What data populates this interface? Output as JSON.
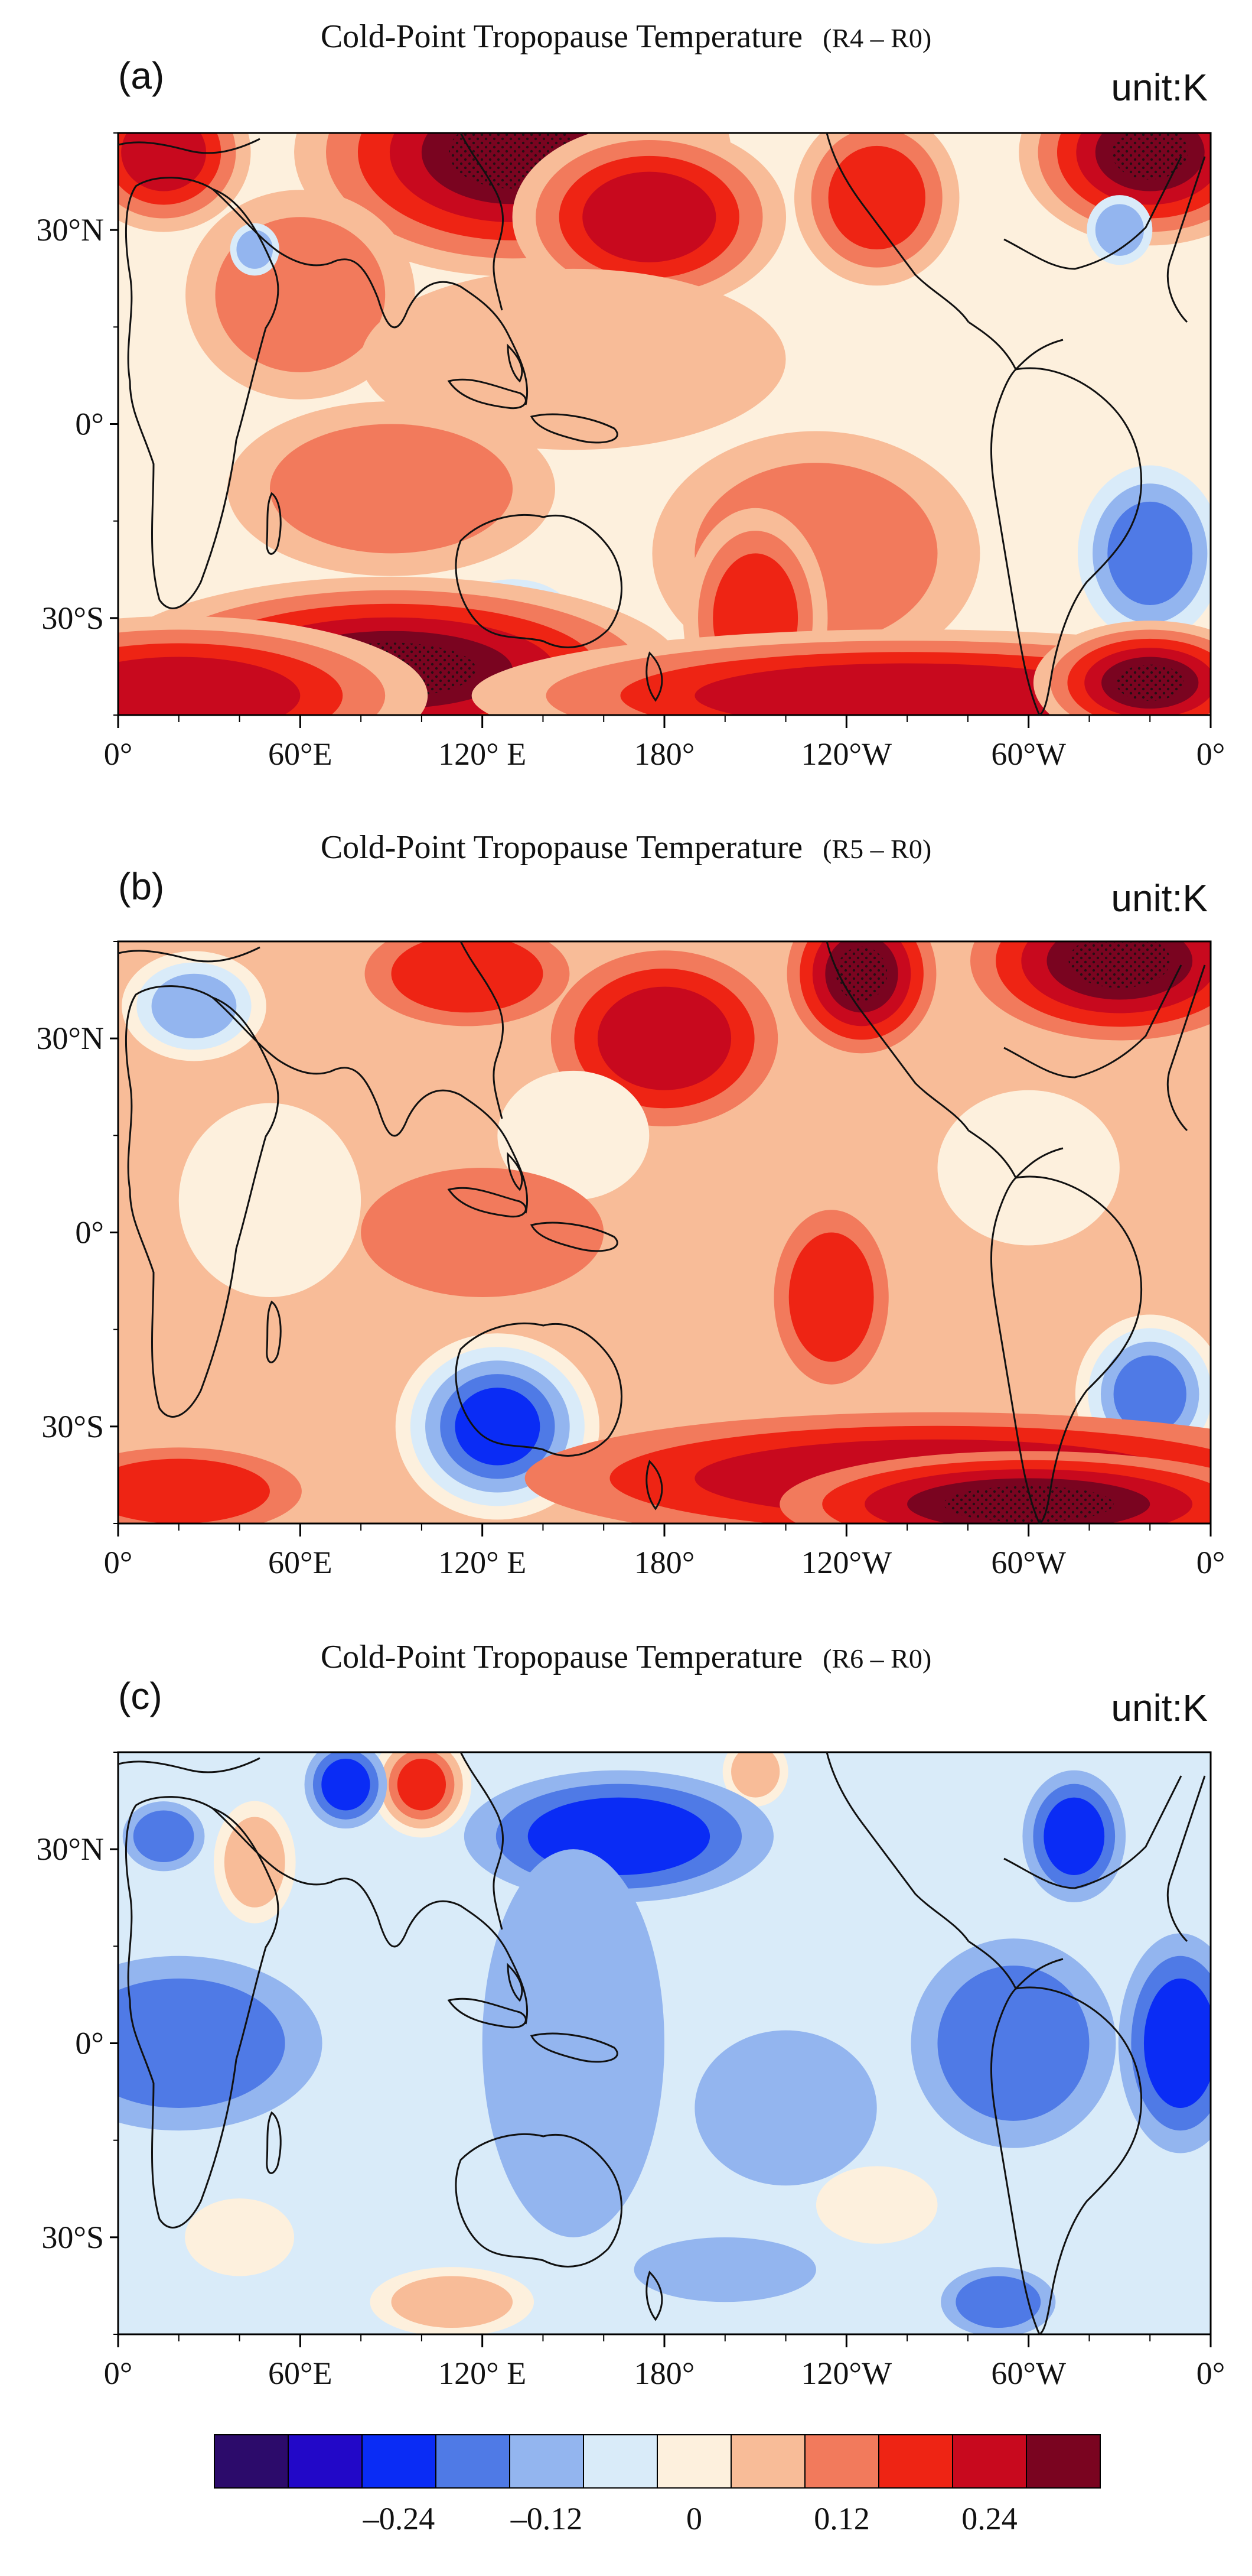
{
  "palette": [
    "#2c0b6b",
    "#2208c8",
    "#0a2cf5",
    "#4f7ae6",
    "#93b5ef",
    "#d9ebf9",
    "#fdf0dd",
    "#f8bc98",
    "#f27a5c",
    "#ee2414",
    "#c8091e",
    "#7a0420"
  ],
  "colorbar": {
    "labels": [
      "–0.24",
      "–0.12",
      "0",
      "0.12",
      "0.24"
    ]
  },
  "axes": {
    "x_labels": [
      "0°",
      "60°E",
      "120° E",
      "180°",
      "120°W",
      "60°W",
      "0°"
    ],
    "y_labels": [
      "30°N",
      "0°",
      "30°S"
    ]
  },
  "panels": [
    {
      "label": "(a)",
      "title": "Cold-Point Tropopause Temperature",
      "experiment": "(R4 – R0)",
      "unit": "unit:K",
      "base": 6,
      "field": [
        {
          "lon": 130,
          "lat": 42,
          "rx": 30,
          "ry": 8,
          "level": 11
        },
        {
          "lon": 15,
          "lat": 42,
          "rx": 14,
          "ry": 6,
          "level": 10
        },
        {
          "lon": 340,
          "lat": 42,
          "rx": 18,
          "ry": 6,
          "level": 11
        },
        {
          "lon": 175,
          "lat": 32,
          "rx": 22,
          "ry": 7,
          "level": 10
        },
        {
          "lon": 250,
          "lat": 35,
          "rx": 16,
          "ry": 8,
          "level": 9
        },
        {
          "lon": 60,
          "lat": 20,
          "rx": 28,
          "ry": 12,
          "level": 8
        },
        {
          "lon": 150,
          "lat": 10,
          "rx": 70,
          "ry": 14,
          "level": 7
        },
        {
          "lon": 90,
          "lat": -10,
          "rx": 40,
          "ry": 10,
          "level": 8
        },
        {
          "lon": 230,
          "lat": -20,
          "rx": 40,
          "ry": 14,
          "level": 8
        },
        {
          "lon": 210,
          "lat": -30,
          "rx": 14,
          "ry": 10,
          "level": 9
        },
        {
          "lon": 340,
          "lat": -20,
          "rx": 14,
          "ry": 8,
          "level": 3
        },
        {
          "lon": 330,
          "lat": 30,
          "rx": 8,
          "ry": 4,
          "level": 4
        },
        {
          "lon": 45,
          "lat": 27,
          "rx": 6,
          "ry": 3,
          "level": 4
        },
        {
          "lon": 130,
          "lat": -30,
          "rx": 20,
          "ry": 6,
          "level": 5
        },
        {
          "lon": 90,
          "lat": -38,
          "rx": 40,
          "ry": 6,
          "level": 11
        },
        {
          "lon": 20,
          "lat": -42,
          "rx": 40,
          "ry": 6,
          "level": 10
        },
        {
          "lon": 260,
          "lat": -42,
          "rx": 70,
          "ry": 5,
          "level": 10
        },
        {
          "lon": 340,
          "lat": -40,
          "rx": 16,
          "ry": 4,
          "level": 11
        }
      ]
    },
    {
      "label": "(b)",
      "title": "Cold-Point Tropopause Temperature",
      "experiment": "(R5 – R0)",
      "unit": "unit:K",
      "base": 7,
      "field": [
        {
          "lon": 115,
          "lat": 40,
          "rx": 25,
          "ry": 6,
          "level": 9
        },
        {
          "lon": 180,
          "lat": 30,
          "rx": 22,
          "ry": 8,
          "level": 10
        },
        {
          "lon": 245,
          "lat": 40,
          "rx": 12,
          "ry": 6,
          "level": 11
        },
        {
          "lon": 330,
          "lat": 42,
          "rx": 24,
          "ry": 6,
          "level": 11
        },
        {
          "lon": 25,
          "lat": 35,
          "rx": 14,
          "ry": 5,
          "level": 4
        },
        {
          "lon": 50,
          "lat": 5,
          "rx": 30,
          "ry": 15,
          "level": 6
        },
        {
          "lon": 150,
          "lat": 15,
          "rx": 25,
          "ry": 10,
          "level": 6
        },
        {
          "lon": 300,
          "lat": 10,
          "rx": 30,
          "ry": 12,
          "level": 6
        },
        {
          "lon": 120,
          "lat": 0,
          "rx": 40,
          "ry": 10,
          "level": 8
        },
        {
          "lon": 235,
          "lat": -10,
          "rx": 14,
          "ry": 10,
          "level": 9
        },
        {
          "lon": 125,
          "lat": -30,
          "rx": 14,
          "ry": 6,
          "level": 2
        },
        {
          "lon": 340,
          "lat": -25,
          "rx": 12,
          "ry": 6,
          "level": 3
        },
        {
          "lon": 270,
          "lat": -38,
          "rx": 80,
          "ry": 6,
          "level": 10
        },
        {
          "lon": 300,
          "lat": -42,
          "rx": 40,
          "ry": 4,
          "level": 11
        },
        {
          "lon": 20,
          "lat": -40,
          "rx": 30,
          "ry": 5,
          "level": 9
        }
      ]
    },
    {
      "label": "(c)",
      "title": "Cold-Point Tropopause Temperature",
      "experiment": "(R6 – R0)",
      "unit": "unit:K",
      "base": 5,
      "field": [
        {
          "lon": 100,
          "lat": 40,
          "rx": 8,
          "ry": 4,
          "level": 9
        },
        {
          "lon": 210,
          "lat": 42,
          "rx": 8,
          "ry": 4,
          "level": 7
        },
        {
          "lon": 45,
          "lat": 28,
          "rx": 10,
          "ry": 7,
          "level": 7
        },
        {
          "lon": 165,
          "lat": 32,
          "rx": 30,
          "ry": 6,
          "level": 2
        },
        {
          "lon": 315,
          "lat": 32,
          "rx": 10,
          "ry": 6,
          "level": 2
        },
        {
          "lon": 75,
          "lat": 40,
          "rx": 8,
          "ry": 4,
          "level": 2
        },
        {
          "lon": 15,
          "lat": 32,
          "rx": 10,
          "ry": 4,
          "level": 3
        },
        {
          "lon": 20,
          "lat": 0,
          "rx": 35,
          "ry": 10,
          "level": 3
        },
        {
          "lon": 150,
          "lat": 0,
          "rx": 30,
          "ry": 30,
          "level": 4
        },
        {
          "lon": 220,
          "lat": -10,
          "rx": 30,
          "ry": 12,
          "level": 4
        },
        {
          "lon": 295,
          "lat": 0,
          "rx": 25,
          "ry": 12,
          "level": 3
        },
        {
          "lon": 350,
          "lat": 0,
          "rx": 12,
          "ry": 10,
          "level": 2
        },
        {
          "lon": 250,
          "lat": -25,
          "rx": 20,
          "ry": 6,
          "level": 6
        },
        {
          "lon": 40,
          "lat": -30,
          "rx": 18,
          "ry": 6,
          "level": 6
        },
        {
          "lon": 110,
          "lat": -40,
          "rx": 20,
          "ry": 4,
          "level": 7
        },
        {
          "lon": 290,
          "lat": -40,
          "rx": 14,
          "ry": 4,
          "level": 3
        },
        {
          "lon": 200,
          "lat": -35,
          "rx": 30,
          "ry": 5,
          "level": 4
        }
      ]
    }
  ]
}
